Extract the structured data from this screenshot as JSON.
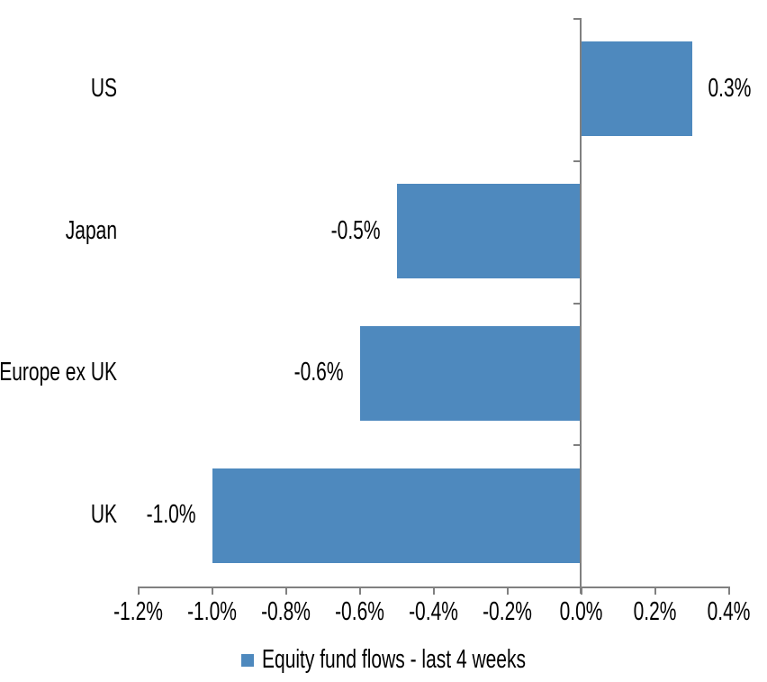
{
  "chart_data": {
    "type": "bar",
    "orientation": "horizontal",
    "title": "",
    "xlabel": "",
    "ylabel": "",
    "categories": [
      "US",
      "Japan",
      "Europe ex UK",
      "UK"
    ],
    "values": [
      0.3,
      -0.5,
      -0.6,
      -1.0
    ],
    "data_labels": [
      "0.3%",
      "-0.5%",
      "-0.6%",
      "-1.0%"
    ],
    "series_name": "Equity fund flows - last 4 weeks",
    "xlim": [
      -1.2,
      0.4
    ],
    "x_ticks": [
      -1.2,
      -1.0,
      -0.8,
      -0.6,
      -0.4,
      -0.2,
      0.0,
      0.2,
      0.4
    ],
    "x_tick_labels": [
      "-1.2%",
      "-1.0%",
      "-0.8%",
      "-0.6%",
      "-0.4%",
      "-0.2%",
      "0.0%",
      "0.2%",
      "0.4%"
    ],
    "grid": false,
    "legend_position": "bottom",
    "bar_color": "#4E89BE",
    "axis_color": "#808080",
    "text_color": "#000000"
  },
  "legend": {
    "label": "Equity fund flows - last 4 weeks",
    "swatch_color": "#4E89BE"
  }
}
